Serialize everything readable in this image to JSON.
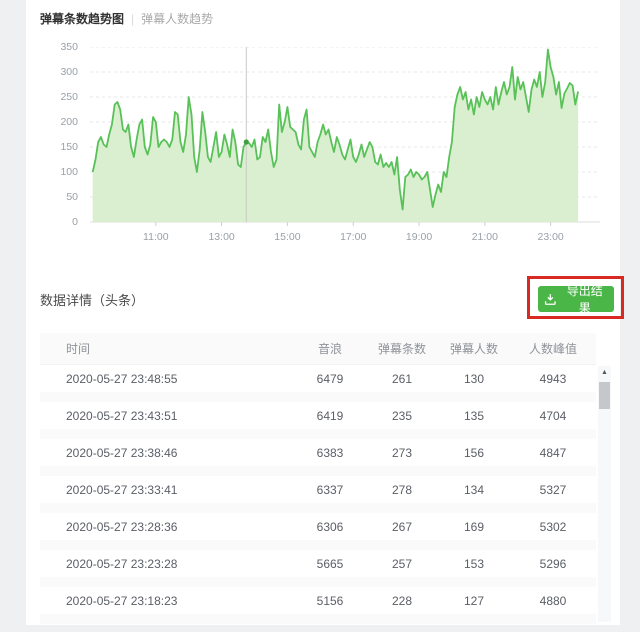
{
  "chart_header": {
    "tab_active": "弹幕条数趋势图",
    "separator": "|",
    "tab_inactive": "弹幕人数趋势"
  },
  "chart_data": {
    "type": "area",
    "title": "弹幕条数趋势图",
    "xlabel": "",
    "ylabel": "",
    "ylim": [
      0,
      350
    ],
    "y_ticks": [
      0,
      50,
      100,
      150,
      200,
      250,
      300,
      350
    ],
    "grid": "dashed-horizontal",
    "legend": "none",
    "x_tick_labels": [
      "11:00",
      "13:00",
      "15:00",
      "17:00",
      "19:00",
      "21:00",
      "23:00"
    ],
    "x_tick_minutes": [
      660,
      780,
      900,
      1020,
      1140,
      1260,
      1380
    ],
    "x_range_minutes": [
      540,
      1470
    ],
    "start_minute": 545,
    "minutes_per_point": 5,
    "line_color": "#58c158",
    "fill_color": "#d9efcf",
    "crosshair_index": 56,
    "values": [
      100,
      125,
      160,
      170,
      155,
      150,
      175,
      195,
      235,
      240,
      225,
      185,
      180,
      195,
      150,
      130,
      165,
      195,
      205,
      150,
      135,
      155,
      210,
      200,
      150,
      160,
      165,
      160,
      150,
      165,
      220,
      215,
      160,
      140,
      175,
      250,
      215,
      130,
      100,
      145,
      220,
      180,
      130,
      120,
      150,
      180,
      130,
      140,
      175,
      155,
      130,
      185,
      160,
      115,
      110,
      150,
      160,
      158,
      150,
      165,
      125,
      130,
      170,
      160,
      185,
      140,
      110,
      125,
      235,
      180,
      200,
      230,
      190,
      185,
      180,
      155,
      145,
      205,
      225,
      150,
      140,
      130,
      160,
      175,
      195,
      175,
      185,
      160,
      140,
      170,
      155,
      135,
      125,
      145,
      165,
      130,
      120,
      135,
      155,
      130,
      145,
      160,
      150,
      120,
      115,
      135,
      110,
      118,
      110,
      120,
      95,
      130,
      65,
      25,
      90,
      95,
      105,
      90,
      100,
      95,
      85,
      90,
      100,
      65,
      30,
      55,
      75,
      60,
      100,
      90,
      130,
      160,
      230,
      255,
      270,
      245,
      260,
      225,
      245,
      215,
      250,
      230,
      260,
      245,
      235,
      250,
      225,
      270,
      235,
      260,
      280,
      255,
      270,
      310,
      245,
      290,
      265,
      280,
      250,
      220,
      265,
      285,
      270,
      300,
      250,
      280,
      345,
      310,
      290,
      255,
      280,
      228,
      257,
      267,
      278,
      273,
      235,
      261
    ]
  },
  "table_section": {
    "title": "数据详情（头条）",
    "export_button": {
      "label": "导出结果",
      "color": "#4bb648"
    },
    "columns": [
      "时间",
      "音浪",
      "弹幕条数",
      "弹幕人数",
      "人数峰值"
    ],
    "rows": [
      [
        "2020-05-27 23:48:55",
        "6479",
        "261",
        "130",
        "4943"
      ],
      [
        "2020-05-27 23:43:51",
        "6419",
        "235",
        "135",
        "4704"
      ],
      [
        "2020-05-27 23:38:46",
        "6383",
        "273",
        "156",
        "4847"
      ],
      [
        "2020-05-27 23:33:41",
        "6337",
        "278",
        "134",
        "5327"
      ],
      [
        "2020-05-27 23:28:36",
        "6306",
        "267",
        "169",
        "5302"
      ],
      [
        "2020-05-27 23:23:28",
        "5665",
        "257",
        "153",
        "5296"
      ],
      [
        "2020-05-27 23:18:23",
        "5156",
        "228",
        "127",
        "4880"
      ]
    ],
    "scrollbar_up_glyph": "▲"
  },
  "annotation": {
    "color": "#d82a22"
  }
}
